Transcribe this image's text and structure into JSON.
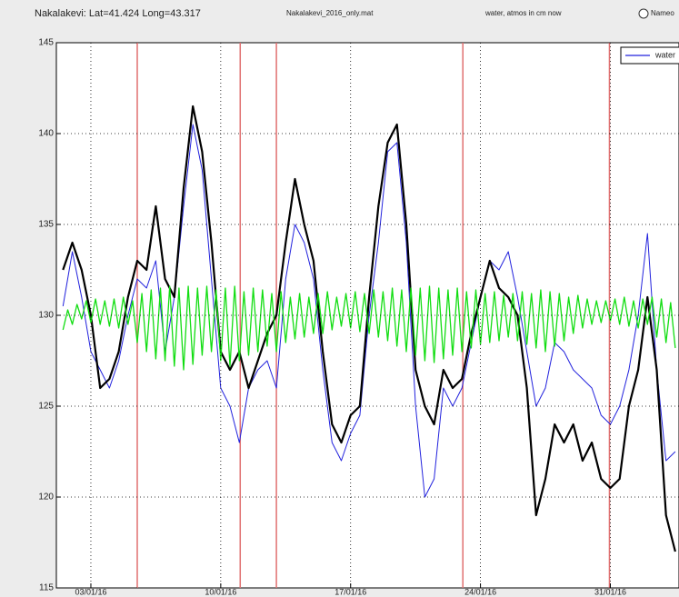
{
  "chart_data": {
    "type": "line",
    "title": "Nakalakevi: Lat=41.424 Long=43.317",
    "file_label": "Nakalakevi_2016_only.mat",
    "subtitle": "water, atmos in cm now",
    "radio_label": "Nameo",
    "x": [
      1.5,
      2,
      2.5,
      3,
      3.5,
      4,
      4.5,
      5,
      5.5,
      6,
      6.5,
      7,
      7.5,
      8,
      8.5,
      9,
      9.5,
      10,
      10.5,
      11,
      11.5,
      12,
      12.5,
      13,
      13.5,
      14,
      14.5,
      15,
      15.5,
      16,
      16.5,
      17,
      17.5,
      18,
      18.5,
      19,
      19.5,
      20,
      20.5,
      21,
      21.5,
      22,
      22.5,
      23,
      23.5,
      24,
      24.5,
      25,
      25.5,
      26,
      26.5,
      27,
      27.5,
      28,
      28.5,
      29,
      29.5,
      30,
      30.5,
      31,
      31.5,
      32,
      32.5,
      33,
      33.5,
      34,
      34.5
    ],
    "series": [
      {
        "name": "water",
        "color": "#2222dd",
        "width": 1,
        "values": [
          130.5,
          133.5,
          131,
          128,
          127,
          126,
          127.5,
          130,
          132,
          131.5,
          133,
          128,
          131,
          136,
          140.5,
          138,
          132,
          126,
          125,
          123,
          126,
          127,
          127.5,
          126,
          132,
          135,
          134,
          132,
          127,
          123,
          122,
          123.5,
          124.5,
          130,
          134,
          139,
          139.5,
          134,
          125,
          120,
          121,
          126,
          125,
          126,
          128.5,
          131,
          133,
          132.5,
          133.5,
          131,
          128,
          125,
          126,
          128.5,
          128,
          127,
          126.5,
          126,
          124.5,
          124,
          125,
          127,
          130,
          134.5,
          127,
          122,
          122.5
        ]
      },
      {
        "color": "#000000",
        "width": 2.2,
        "values": [
          132.5,
          134,
          132.5,
          130,
          126,
          126.5,
          128,
          131,
          133,
          132.5,
          136,
          132,
          131,
          137,
          141.5,
          139,
          134,
          128,
          127,
          128,
          126,
          127.5,
          129,
          130,
          134,
          137.5,
          135,
          133,
          128,
          124,
          123,
          124.5,
          125,
          131,
          136,
          139.5,
          140.5,
          135,
          127,
          125,
          124,
          127,
          126,
          126.5,
          129,
          131,
          133,
          131.5,
          131,
          130,
          126,
          119,
          121,
          124,
          123,
          124,
          122,
          123,
          121,
          120.5,
          121,
          125,
          127,
          131,
          127,
          119,
          117
        ]
      },
      {
        "color": "#11dd11",
        "width": 1.3,
        "x": [
          1.5,
          1.75,
          2,
          2.25,
          2.5,
          2.75,
          3,
          3.25,
          3.5,
          3.75,
          4,
          4.25,
          4.5,
          4.75,
          5,
          5.25,
          5.5,
          5.75,
          6,
          6.25,
          6.5,
          6.75,
          7,
          7.25,
          7.5,
          7.75,
          8,
          8.25,
          8.5,
          8.75,
          9,
          9.25,
          9.5,
          9.75,
          10,
          10.25,
          10.5,
          10.75,
          11,
          11.25,
          11.5,
          11.75,
          12,
          12.25,
          12.5,
          12.75,
          13,
          13.25,
          13.5,
          13.75,
          14,
          14.25,
          14.5,
          14.75,
          15,
          15.25,
          15.5,
          15.75,
          16,
          16.25,
          16.5,
          16.75,
          17,
          17.25,
          17.5,
          17.75,
          18,
          18.25,
          18.5,
          18.75,
          19,
          19.25,
          19.5,
          19.75,
          20,
          20.25,
          20.5,
          20.75,
          21,
          21.25,
          21.5,
          21.75,
          22,
          22.25,
          22.5,
          22.75,
          23,
          23.25,
          23.5,
          23.75,
          24,
          24.25,
          24.5,
          24.75,
          25,
          25.25,
          25.5,
          25.75,
          26,
          26.25,
          26.5,
          26.75,
          27,
          27.25,
          27.5,
          27.75,
          28,
          28.25,
          28.5,
          28.75,
          29,
          29.25,
          29.5,
          29.75,
          30,
          30.25,
          30.5,
          30.75,
          31,
          31.25,
          31.5,
          31.75,
          32,
          32.25,
          32.5,
          32.75,
          33,
          33.25,
          33.5,
          33.75,
          34,
          34.25,
          34.5
        ],
        "values": [
          129.2,
          130.3,
          129.5,
          130.6,
          129.8,
          130.8,
          129.6,
          130.9,
          129.5,
          130.8,
          129.4,
          130.9,
          129.3,
          131,
          129.5,
          130.8,
          128.5,
          131.2,
          128.0,
          131.4,
          127.6,
          131.5,
          127.5,
          131.6,
          127.2,
          131.5,
          127.0,
          131.6,
          127.3,
          131.5,
          127.8,
          131.6,
          128.0,
          131.4,
          127.5,
          131.5,
          127.2,
          131.6,
          127.5,
          131.3,
          127.8,
          131.5,
          128.0,
          131.4,
          128.3,
          131.2,
          128.0,
          131.3,
          128.5,
          131.0,
          128.7,
          131.2,
          128.8,
          131.0,
          129.0,
          131.2,
          129.0,
          131.3,
          129.2,
          131.0,
          129.4,
          131.2,
          129.3,
          131.3,
          129.1,
          131.2,
          129.0,
          131.4,
          128.8,
          131.3,
          128.6,
          131.5,
          128.3,
          131.4,
          128.0,
          131.5,
          127.8,
          131.5,
          127.5,
          131.6,
          127.4,
          131.5,
          127.6,
          131.4,
          127.8,
          131.5,
          128.0,
          131.3,
          128.2,
          131.4,
          128.4,
          131.2,
          128.5,
          131.3,
          128.6,
          131.1,
          128.8,
          131.2,
          128.6,
          131.3,
          128.4,
          131.2,
          128.2,
          131.4,
          128.0,
          131.3,
          128.3,
          131.2,
          128.6,
          131.0,
          129.0,
          131.1,
          129.3,
          130.9,
          129.5,
          130.8,
          129.6,
          130.8,
          129.7,
          130.9,
          129.5,
          131.0,
          129.4,
          130.8,
          129.3,
          130.9,
          129.5,
          131.0,
          128.8,
          130.9,
          128.5,
          130.7,
          128.2
        ]
      }
    ],
    "markers": [
      5.5,
      11.05,
      13,
      23.05,
      30.95
    ],
    "marker_color": "#e07070",
    "xlim": [
      1.14,
      34.7
    ],
    "xticks": [
      {
        "value": 3,
        "label": "03/01/16"
      },
      {
        "value": 10,
        "label": "10/01/16"
      },
      {
        "value": 17,
        "label": "17/01/16"
      },
      {
        "value": 24,
        "label": "24/01/16"
      },
      {
        "value": 31,
        "label": "31/01/16"
      }
    ],
    "ylim": [
      115,
      145
    ],
    "yticks": [
      115,
      120,
      125,
      130,
      135,
      140,
      145
    ],
    "grid": true,
    "legend": "top-right"
  }
}
